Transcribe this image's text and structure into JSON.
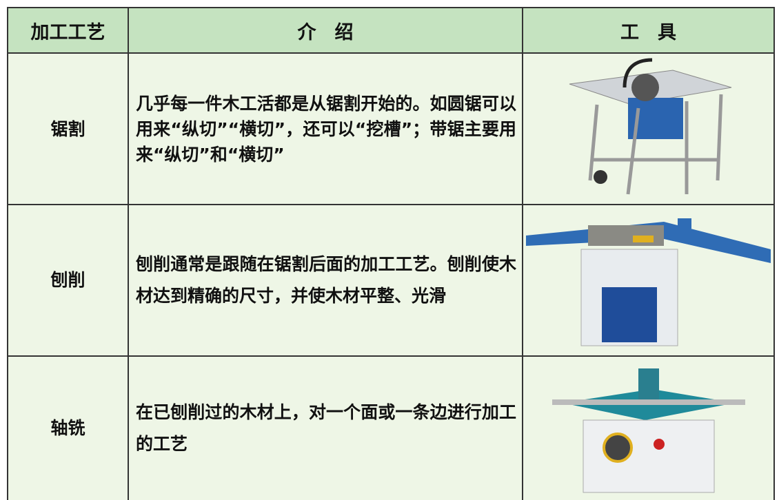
{
  "table": {
    "header": [
      "加工工艺",
      "介　绍",
      "工　具"
    ],
    "rows": [
      [
        "锯割",
        "几乎每一件木工活都是从锯割开始的。如圆锯可以用来“纵切”“横切”，还可以“挖槽”；带锯主要用来“纵切”和“横切”"
      ],
      [
        "刨削",
        "刨削通常是跟随在锯割后面的加工工艺。刨削使木材达到精确的尺寸，并使木材平整、光滑"
      ],
      [
        "轴铣",
        "在已刨削过的木材上，对一个面或一条边进行加工的工艺"
      ]
    ]
  }
}
